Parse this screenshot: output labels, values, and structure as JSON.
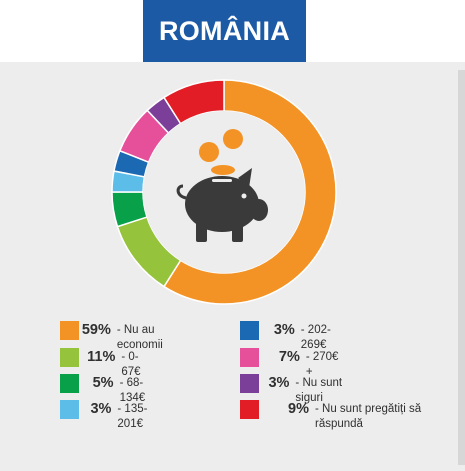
{
  "header": {
    "title": "ROMÂNIA"
  },
  "colors": {
    "title_bg": "#1c5aa6",
    "panel_bg": "#ededed",
    "piggy": "#3a3a3a",
    "coins": "#f39325"
  },
  "icon": "piggy-bank-with-coins",
  "chart_data": {
    "type": "pie",
    "donut": true,
    "start_angle": "top, clockwise",
    "slices": [
      {
        "percent_label": "59%",
        "label": "- Nu au economii",
        "value": 59,
        "color": "#f39325"
      },
      {
        "percent_label": "11%",
        "label": "- 0-67€",
        "value": 11,
        "color": "#95c33b"
      },
      {
        "percent_label": "5%",
        "label": "- 68-134€",
        "value": 5,
        "color": "#08a14a"
      },
      {
        "percent_label": "3%",
        "label": "- 135-201€",
        "value": 3,
        "color": "#5cbde9"
      },
      {
        "percent_label": "3%",
        "label": "- 202-269€",
        "value": 3,
        "color": "#1c69b3"
      },
      {
        "percent_label": "7%",
        "label": "- 270€ +",
        "value": 7,
        "color": "#e6509b"
      },
      {
        "percent_label": "3%",
        "label": "- Nu sunt siguri",
        "value": 3,
        "color": "#7b3f99"
      },
      {
        "percent_label": "9%",
        "label": "- Nu sunt pregătiți să răspundă",
        "value": 9,
        "color": "#e31d25"
      }
    ]
  }
}
